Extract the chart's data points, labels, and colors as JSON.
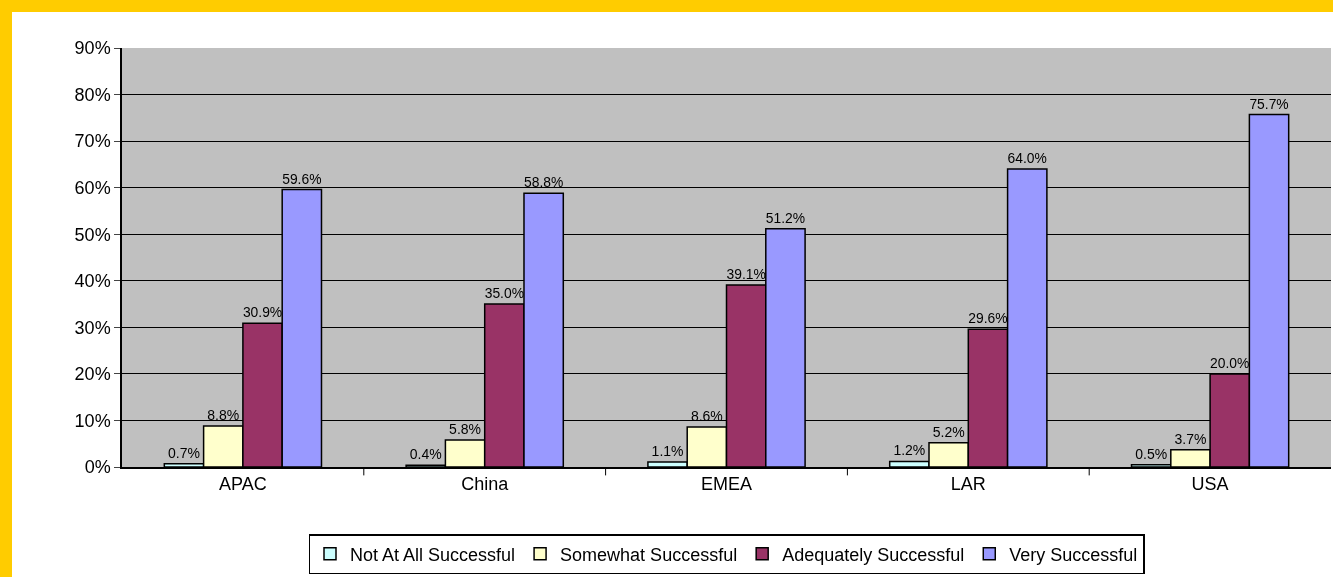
{
  "chart_data": {
    "type": "bar",
    "categories": [
      "APAC",
      "China",
      "EMEA",
      "LAR",
      "USA"
    ],
    "series": [
      {
        "name": "Not At All Successful",
        "color": "#ccffff",
        "values": [
          0.7,
          0.4,
          1.1,
          1.2,
          0.5
        ],
        "value_labels": [
          "0.7%",
          "0.4%",
          "1.1%",
          "1.2%",
          "0.5%"
        ]
      },
      {
        "name": "Somewhat Successful",
        "color": "#ffffcc",
        "values": [
          8.8,
          5.8,
          8.6,
          5.2,
          3.7
        ],
        "value_labels": [
          "8.8%",
          "5.8%",
          "8.6%",
          "5.2%",
          "3.7%"
        ]
      },
      {
        "name": "Adequately Successful",
        "color": "#993366",
        "values": [
          30.9,
          35.0,
          39.1,
          29.6,
          20.0
        ],
        "value_labels": [
          "30.9%",
          "35.0%",
          "39.1%",
          "29.6%",
          "20.0%"
        ]
      },
      {
        "name": "Very Successful",
        "color": "#9999ff",
        "values": [
          59.6,
          58.8,
          51.2,
          64.0,
          75.7
        ],
        "value_labels": [
          "59.6%",
          "58.8%",
          "51.2%",
          "64.0%",
          "75.7%"
        ]
      }
    ],
    "ylim": [
      0,
      90
    ],
    "yticks": [
      {
        "value": 0,
        "label": "0%"
      },
      {
        "value": 10,
        "label": "10%"
      },
      {
        "value": 20,
        "label": "20%"
      },
      {
        "value": 30,
        "label": "30%"
      },
      {
        "value": 40,
        "label": "40%"
      },
      {
        "value": 50,
        "label": "50%"
      },
      {
        "value": 60,
        "label": "60%"
      },
      {
        "value": 70,
        "label": "70%"
      },
      {
        "value": 80,
        "label": "80%"
      },
      {
        "value": 90,
        "label": "90%"
      }
    ],
    "grid": "y",
    "legend": "bottom"
  }
}
